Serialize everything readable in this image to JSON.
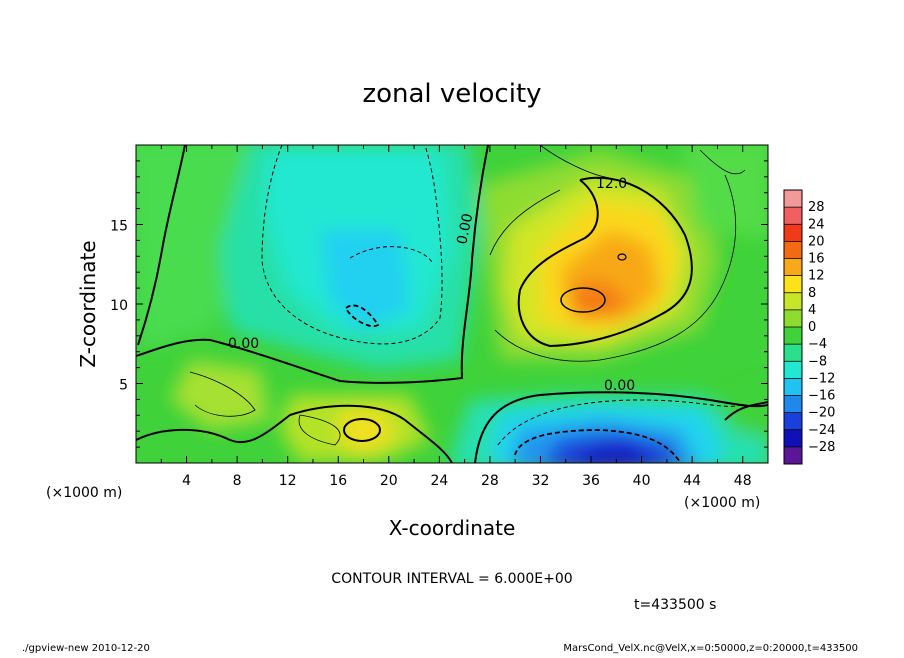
{
  "chart_data": {
    "type": "heatmap",
    "title": "zonal velocity",
    "xlabel": "X-coordinate",
    "ylabel": "Z-coordinate",
    "x_unit_label": "(×1000 m)",
    "y_unit_label": "(×1000 m)",
    "xlim": [
      0,
      50
    ],
    "ylim": [
      0,
      20
    ],
    "x_ticks": [
      4,
      8,
      12,
      16,
      20,
      24,
      28,
      32,
      36,
      40,
      44,
      48
    ],
    "y_ticks": [
      5,
      10,
      15
    ],
    "colorbar": {
      "levels": [
        28,
        24,
        20,
        16,
        12,
        8,
        4,
        0,
        -4,
        -8,
        -12,
        -16,
        -20,
        -24,
        -28
      ],
      "colors": [
        "#f29a9a",
        "#f06060",
        "#f03a1a",
        "#f46a10",
        "#f8a818",
        "#fbe21c",
        "#c8e628",
        "#8edc30",
        "#3fd23a",
        "#2ae08c",
        "#22e8d2",
        "#20c2f4",
        "#2088ec",
        "#1a40dc",
        "#1010b8",
        "#5a1696"
      ]
    },
    "contour_labels": [
      "0.00",
      "0.00",
      "0.00",
      "12.0"
    ],
    "contour_interval_text": "CONTOUR INTERVAL = 6.000E+00",
    "time_text": "t=433500 s",
    "footer_left": "./gpview-new  2010-12-20",
    "footer_right": "MarsCond_VelX.nc@VelX,x=0:50000,z=0:20000,t=433500"
  }
}
